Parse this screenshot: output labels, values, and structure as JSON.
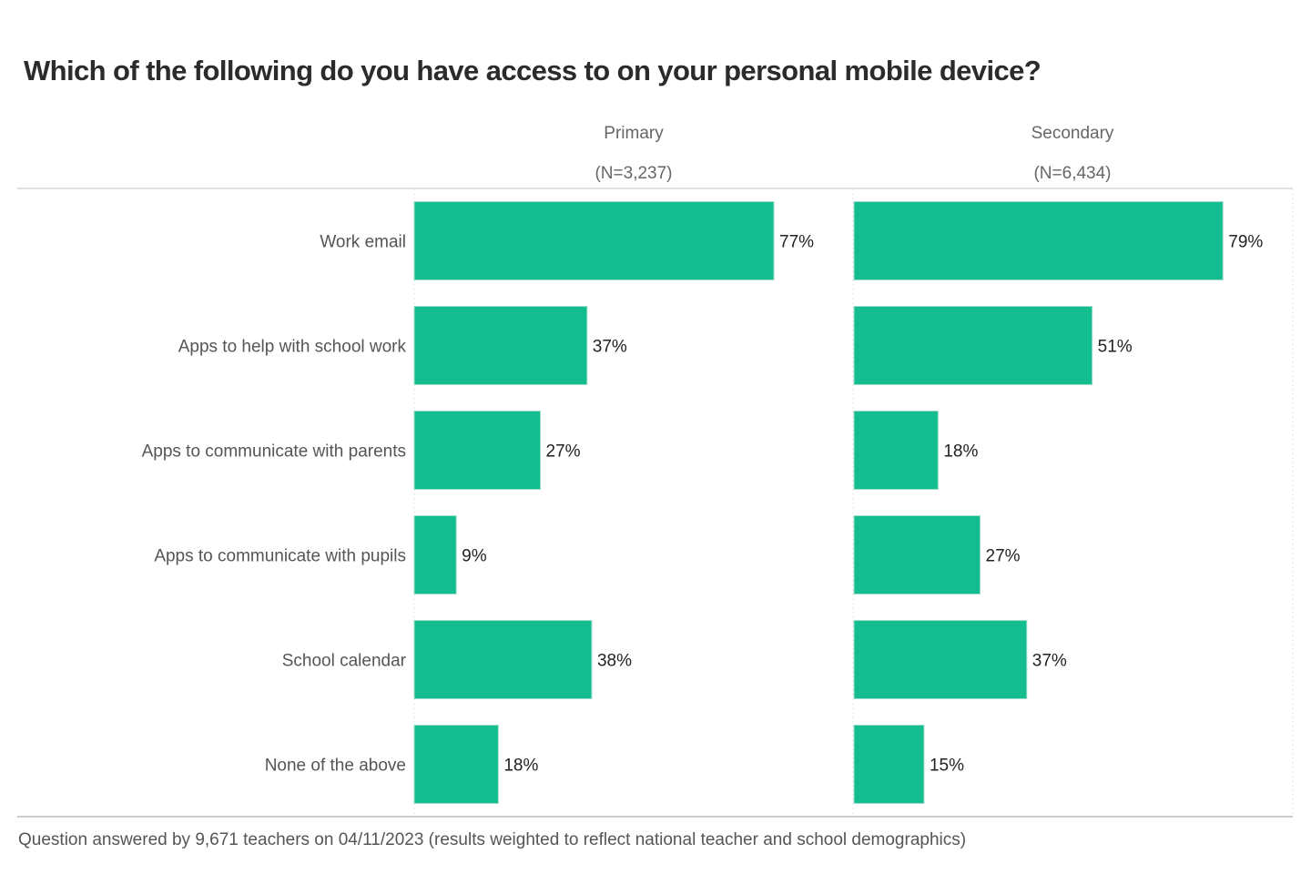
{
  "chart_data": {
    "type": "bar",
    "orientation": "horizontal",
    "title": "Which of the following do you have access to on your personal mobile device?",
    "categories": [
      "Work email",
      "Apps to help with school work",
      "Apps to communicate with parents",
      "Apps to communicate with pupils",
      "School calendar",
      "None of the above"
    ],
    "panels": [
      {
        "name": "Primary",
        "n_label": "(N=3,237)",
        "values": [
          77,
          37,
          27,
          9,
          38,
          18
        ]
      },
      {
        "name": "Secondary",
        "n_label": "(N=6,434)",
        "values": [
          79,
          51,
          18,
          27,
          37,
          15
        ]
      }
    ],
    "value_suffix": "%",
    "xlim": [
      0,
      100
    ],
    "bar_color": "#13bd8f",
    "footer": "Question answered by 9,671 teachers on 04/11/2023 (results weighted to reflect national teacher and school demographics)"
  }
}
